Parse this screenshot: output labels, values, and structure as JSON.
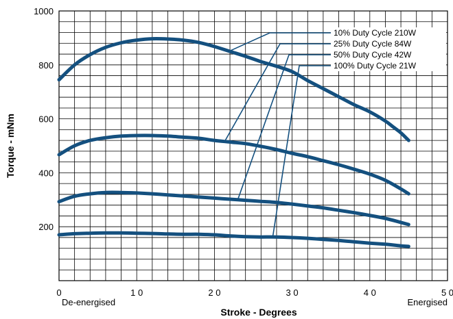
{
  "chart_data": {
    "type": "line",
    "xlabel": "Stroke - Degrees",
    "ylabel": "Torque - mNm",
    "xlim": [
      0,
      50
    ],
    "ylim": [
      0,
      1000
    ],
    "x_ticks": [
      "0",
      "1 0",
      "2 0",
      "3 0",
      "4 0",
      "5 0"
    ],
    "y_ticks": [
      "200",
      "400",
      "600",
      "800",
      "1000"
    ],
    "x_start_label": "De-energised",
    "x_end_label": "Energised",
    "grid": true,
    "line_color": "#14507f",
    "series": [
      {
        "name": "10% Duty Cycle 210W",
        "x": [
          0,
          2,
          4,
          6,
          8,
          10,
          12,
          14,
          16,
          18,
          20,
          22,
          24,
          26,
          28,
          30,
          32,
          34,
          36,
          38,
          40,
          42,
          43,
          44,
          45
        ],
        "values": [
          745,
          800,
          838,
          865,
          882,
          892,
          897,
          896,
          892,
          883,
          868,
          850,
          832,
          812,
          795,
          775,
          742,
          712,
          682,
          652,
          626,
          592,
          570,
          548,
          520
        ]
      },
      {
        "name": "25% Duty Cycle 84W",
        "x": [
          0,
          2,
          4,
          6,
          8,
          10,
          12,
          14,
          16,
          18,
          20,
          22,
          24,
          26,
          28,
          30,
          32,
          34,
          36,
          38,
          40,
          42,
          44,
          45
        ],
        "values": [
          467,
          500,
          520,
          530,
          536,
          538,
          538,
          536,
          532,
          528,
          520,
          514,
          508,
          498,
          486,
          472,
          460,
          445,
          430,
          413,
          395,
          372,
          340,
          322
        ]
      },
      {
        "name": "50% Duty Cycle 42W",
        "x": [
          0,
          2,
          4,
          6,
          8,
          10,
          12,
          14,
          16,
          18,
          20,
          22,
          24,
          26,
          28,
          30,
          32,
          34,
          36,
          38,
          40,
          42,
          44,
          45
        ],
        "values": [
          293,
          313,
          322,
          327,
          327,
          325,
          322,
          318,
          314,
          310,
          306,
          302,
          298,
          294,
          290,
          284,
          277,
          270,
          261,
          252,
          242,
          231,
          216,
          208
        ]
      },
      {
        "name": "100% Duty Cycle 21W",
        "x": [
          0,
          2,
          4,
          6,
          8,
          10,
          12,
          14,
          16,
          18,
          20,
          22,
          24,
          26,
          28,
          30,
          32,
          34,
          36,
          38,
          40,
          42,
          44,
          45
        ],
        "values": [
          170,
          174,
          176,
          177,
          177,
          176,
          175,
          173,
          172,
          172,
          170,
          166,
          163,
          162,
          162,
          160,
          157,
          153,
          149,
          144,
          139,
          135,
          129,
          127
        ]
      }
    ],
    "legend_pointers": [
      {
        "series": "10% Duty Cycle 210W",
        "x": 22,
        "y": 852
      },
      {
        "series": "25% Duty Cycle 84W",
        "x": 21.4,
        "y": 520
      },
      {
        "series": "50% Duty Cycle 42W",
        "x": 23,
        "y": 300
      },
      {
        "series": "100% Duty Cycle 21W",
        "x": 27.5,
        "y": 161
      }
    ]
  }
}
